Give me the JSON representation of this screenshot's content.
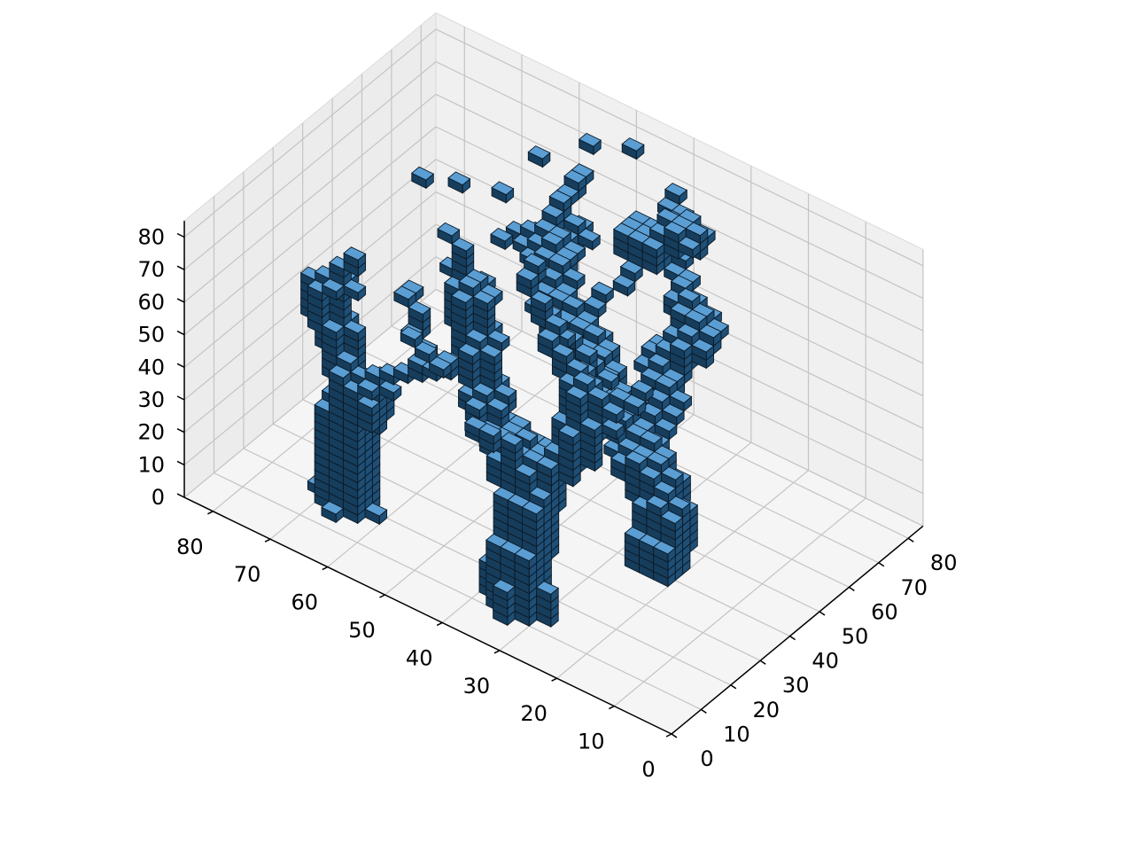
{
  "chart_data": {
    "type": "voxels",
    "title": "",
    "xlabel": "",
    "ylabel": "",
    "zlabel": "",
    "xlim": [
      0,
      85
    ],
    "ylim": [
      0,
      85
    ],
    "zlim": [
      0,
      85
    ],
    "x_ticks": [
      "0",
      "10",
      "20",
      "30",
      "40",
      "50",
      "60",
      "70",
      "80"
    ],
    "y_ticks": [
      "0",
      "10",
      "20",
      "30",
      "40",
      "50",
      "60",
      "70",
      "80"
    ],
    "z_ticks": [
      "0",
      "10",
      "20",
      "30",
      "40",
      "50",
      "60",
      "70",
      "80"
    ],
    "grid": true,
    "voxel_color": "#1f77b4",
    "edge_color": "#000000",
    "shapes": [
      {
        "name": "",
        "x_range": [
          58,
          72
        ],
        "y_range": [
          12,
          22
        ],
        "z_range": [
          0,
          75
        ],
        "description_free": true
      },
      {
        "name": "",
        "x_range": [
          18,
          60
        ],
        "y_range": [
          12,
          30
        ],
        "z_range": [
          0,
          88
        ],
        "description_free": true
      },
      {
        "name": "",
        "x_range": [
          18,
          62
        ],
        "y_range": [
          38,
          85
        ],
        "z_range": [
          0,
          75
        ],
        "description_free": true
      }
    ]
  }
}
